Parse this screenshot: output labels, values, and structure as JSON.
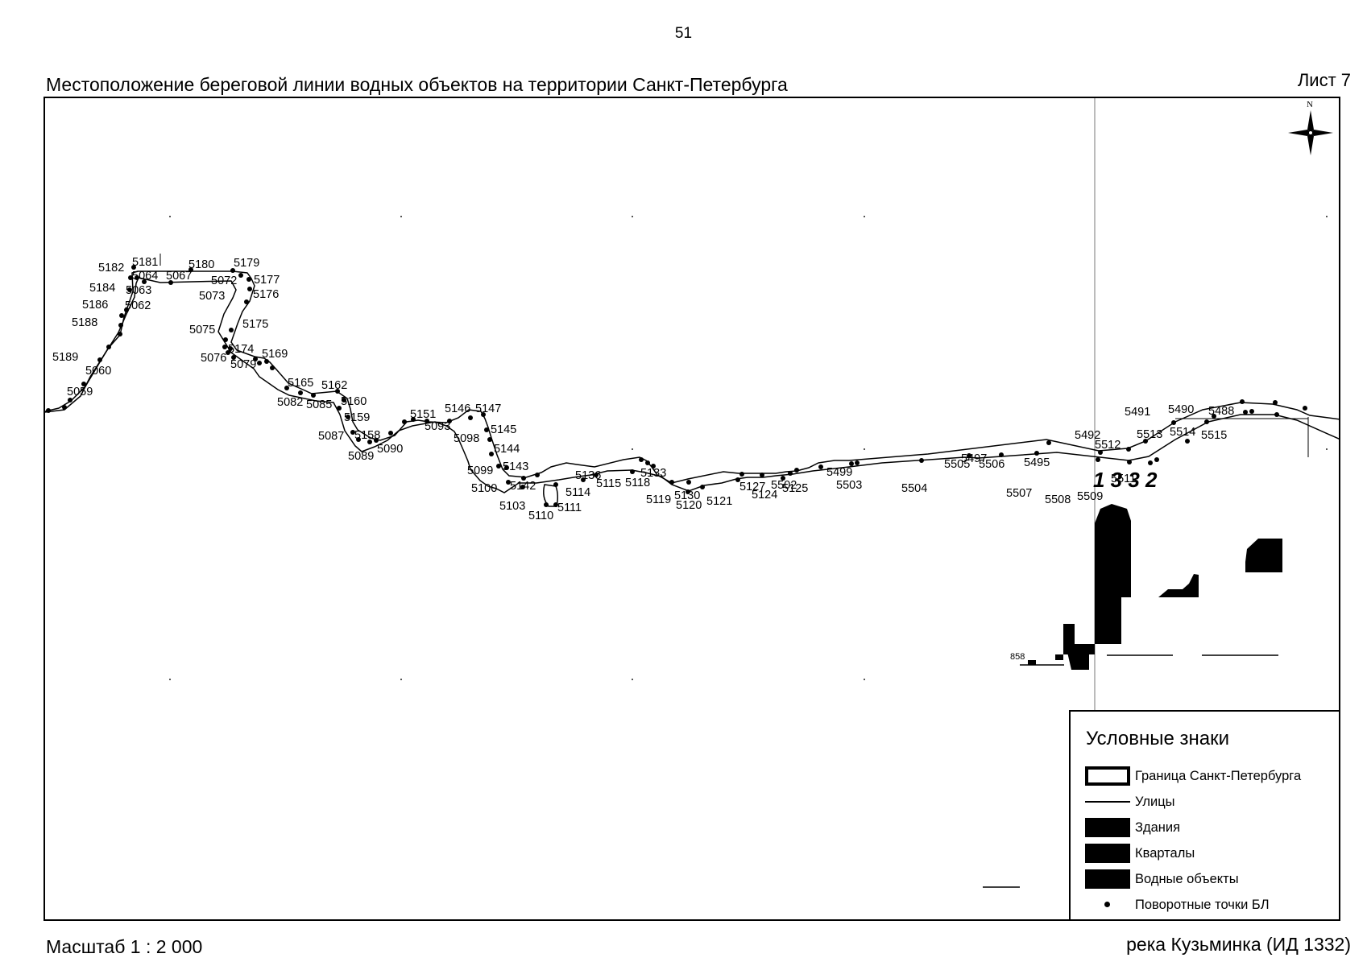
{
  "page_number": "51",
  "title": "Местоположение береговой линии водных объектов на территории Санкт-Петербурга",
  "sheet": "Лист 7",
  "scale": "Масштаб 1 : 2 000",
  "object_name": "река Кузьминка (ИД 1332)",
  "north_arrow_label": "N",
  "object_id_label": "1 3 3 2",
  "street_label": "858",
  "legend": {
    "title": "Условные знаки",
    "items": [
      {
        "label": "Граница Санкт-Петербурга",
        "symbol": "border-box"
      },
      {
        "label": "Улицы",
        "symbol": "thin-line"
      },
      {
        "label": "Здания",
        "symbol": "black-fill"
      },
      {
        "label": "Кварталы",
        "symbol": "black-fill"
      },
      {
        "label": "Водные объекты",
        "symbol": "black-fill"
      },
      {
        "label": "Поворотные точки БЛ",
        "symbol": "dot"
      }
    ]
  },
  "shoreline_points": {
    "north_bank": [
      "5182",
      "5181",
      "5180",
      "5179",
      "5177",
      "5176",
      "5175",
      "5174",
      "5169",
      "5165",
      "5162",
      "5160",
      "5159",
      "5158",
      "5151",
      "5146",
      "5147",
      "5145",
      "5144",
      "5143",
      "5142",
      "5136",
      "5133",
      "5130",
      "5127",
      "5502",
      "5499",
      "5497",
      "5495",
      "5492",
      "5491",
      "5490",
      "5488",
      "5184",
      "5186",
      "5188",
      "5189"
    ],
    "south_bank": [
      "5064",
      "5067",
      "5072",
      "5073",
      "5063",
      "5062",
      "5060",
      "5059",
      "5075",
      "5076",
      "5079",
      "5082",
      "5085",
      "5087",
      "5089",
      "5090",
      "5093",
      "5098",
      "5099",
      "5100",
      "5103",
      "5110",
      "5111",
      "5114",
      "5115",
      "5118",
      "5119",
      "5120",
      "5121",
      "5124",
      "5125",
      "5503",
      "5504",
      "5505",
      "5506",
      "5507",
      "5508",
      "5509",
      "5511",
      "5512",
      "5513",
      "5514",
      "5515"
    ]
  }
}
